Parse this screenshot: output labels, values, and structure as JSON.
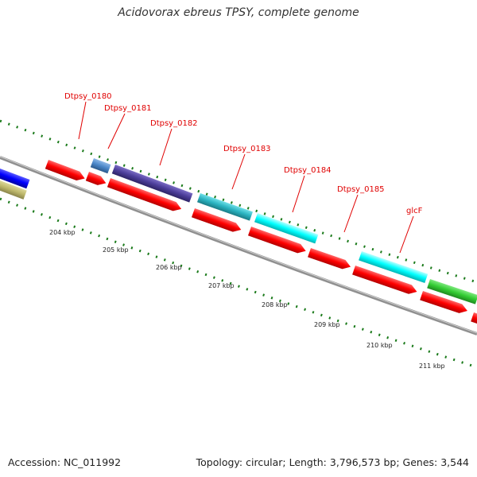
{
  "title": "Acidovorax ebreus TPSY, complete genome",
  "footer": {
    "accession": "Accession: NC_011992",
    "topology": "Topology: circular; Length: 3,796,573 bp; Genes: 3,544"
  },
  "gene_labels": [
    "Dtpsy_0180",
    "Dtpsy_0181",
    "Dtpsy_0182",
    "Dtpsy_0183",
    "Dtpsy_0184",
    "Dtpsy_0185",
    "glcF"
  ],
  "scale_labels": [
    "204 kbp",
    "205 kbp",
    "206 kbp",
    "207 kbp",
    "208 kbp",
    "209 kbp",
    "210 kbp",
    "211 kbp"
  ],
  "colors": {
    "label": "#e00000",
    "tick": "#1a7a1a",
    "backbone": "#808080",
    "cds": "#ff0000",
    "steelblue": "#4a86c8",
    "darkpurple": "#4b3d99",
    "teal": "#2ab3c0",
    "cyan": "#00ffff",
    "green": "#33cc33",
    "blue": "#0000ff",
    "khaki": "#bdb76b"
  }
}
